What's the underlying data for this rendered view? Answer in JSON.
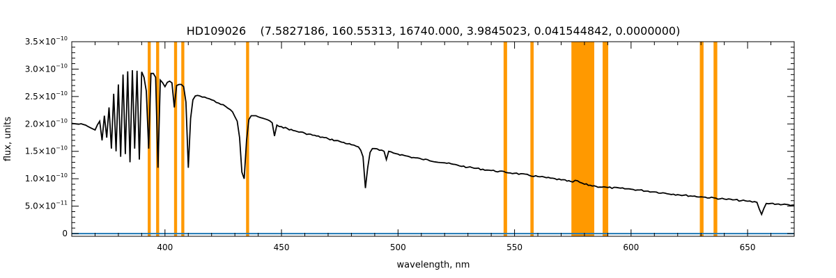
{
  "chart_data": {
    "type": "line",
    "title": "HD109026    (7.5827186, 160.55313, 16740.000, 3.9845023, 0.041544842, 0.0000000)",
    "xlabel": "wavelength, nm",
    "ylabel": "flux, units",
    "xlim": [
      360,
      670
    ],
    "ylim": [
      -5e-12,
      3.5e-10
    ],
    "grid": false,
    "x_ticks": [
      {
        "value": 400,
        "label": "400"
      },
      {
        "value": 450,
        "label": "450"
      },
      {
        "value": 500,
        "label": "500"
      },
      {
        "value": 550,
        "label": "550"
      },
      {
        "value": 600,
        "label": "600"
      },
      {
        "value": 650,
        "label": "650"
      }
    ],
    "y_ticks": [
      {
        "value": 0,
        "mant": "0",
        "exp": ""
      },
      {
        "value": 5e-11,
        "mant": "5.0×10",
        "exp": "−11"
      },
      {
        "value": 1e-10,
        "mant": "1.0×10",
        "exp": "−10"
      },
      {
        "value": 1.5e-10,
        "mant": "1.5×10",
        "exp": "−10"
      },
      {
        "value": 2e-10,
        "mant": "2.0×10",
        "exp": "−10"
      },
      {
        "value": 2.5e-10,
        "mant": "2.5×10",
        "exp": "−10"
      },
      {
        "value": 3e-10,
        "mant": "3.0×10",
        "exp": "−10"
      },
      {
        "value": 3.5e-10,
        "mant": "3.5×10",
        "exp": "−10"
      }
    ],
    "masked_bands": [
      {
        "x0": 392.6,
        "x1": 393.9
      },
      {
        "x0": 396.2,
        "x1": 397.5
      },
      {
        "x0": 403.9,
        "x1": 405.2
      },
      {
        "x0": 407.0,
        "x1": 408.3
      },
      {
        "x0": 434.8,
        "x1": 436.1
      },
      {
        "x0": 545.3,
        "x1": 546.8
      },
      {
        "x0": 556.8,
        "x1": 558.2
      },
      {
        "x0": 574.4,
        "x1": 584.2
      },
      {
        "x0": 587.8,
        "x1": 590.2
      },
      {
        "x0": 629.5,
        "x1": 631.1
      },
      {
        "x0": 635.4,
        "x1": 637.0
      }
    ],
    "series": [
      {
        "color": "#000000",
        "x": [
          360,
          362,
          365,
          368,
          370,
          372,
          373,
          374,
          375,
          376,
          377,
          378,
          379,
          380,
          381,
          382,
          383,
          384,
          385,
          386,
          387,
          388,
          389,
          390,
          391,
          392,
          393,
          394,
          395,
          396,
          397,
          398,
          399,
          400,
          401,
          402,
          403,
          404,
          405,
          406,
          407,
          408,
          409,
          410,
          411,
          412,
          413,
          414,
          415,
          417,
          420,
          423,
          426,
          429,
          431,
          432,
          433,
          434,
          435,
          436,
          437,
          438,
          440,
          443,
          446,
          447,
          448,
          450,
          455,
          460,
          465,
          470,
          475,
          480,
          483,
          484,
          485,
          486,
          487,
          488,
          489,
          490,
          492,
          494,
          495,
          496,
          500,
          505,
          510,
          520,
          530,
          540,
          550,
          560,
          570,
          575,
          576,
          580,
          585,
          590,
          600,
          610,
          620,
          630,
          640,
          650,
          654,
          655,
          656,
          657,
          658,
          660,
          665,
          670
        ],
        "y": [
          2.01e-10,
          2e-10,
          1.99e-10,
          1.93e-10,
          1.89e-10,
          2.05e-10,
          1.7e-10,
          2.15e-10,
          1.75e-10,
          2.3e-10,
          1.55e-10,
          2.55e-10,
          1.5e-10,
          2.72e-10,
          1.4e-10,
          2.9e-10,
          1.45e-10,
          2.96e-10,
          1.3e-10,
          2.98e-10,
          1.55e-10,
          2.97e-10,
          1.35e-10,
          2.95e-10,
          2.85e-10,
          2.6e-10,
          1.55e-10,
          2.92e-10,
          2.92e-10,
          2.85e-10,
          1.2e-10,
          2.8e-10,
          2.75e-10,
          2.68e-10,
          2.76e-10,
          2.78e-10,
          2.75e-10,
          2.3e-10,
          2.7e-10,
          2.72e-10,
          2.72e-10,
          2.68e-10,
          2.4e-10,
          1.2e-10,
          2.1e-10,
          2.44e-10,
          2.51e-10,
          2.52e-10,
          2.51e-10,
          2.49e-10,
          2.44e-10,
          2.38e-10,
          2.32e-10,
          2.22e-10,
          2.05e-10,
          1.75e-10,
          1.12e-10,
          1e-10,
          1.7e-10,
          2.08e-10,
          2.15e-10,
          2.15e-10,
          2.13e-10,
          2.09e-10,
          2.02e-10,
          1.78e-10,
          1.98e-10,
          1.95e-10,
          1.88e-10,
          1.83e-10,
          1.78e-10,
          1.73e-10,
          1.68e-10,
          1.62e-10,
          1.58e-10,
          1.52e-10,
          1.4e-10,
          8.3e-11,
          1.2e-10,
          1.48e-10,
          1.55e-10,
          1.55e-10,
          1.52e-10,
          1.5e-10,
          1.35e-10,
          1.5e-10,
          1.45e-10,
          1.4e-10,
          1.36e-10,
          1.29e-10,
          1.21e-10,
          1.15e-10,
          1.1e-10,
          1.04e-10,
          9.8e-11,
          9.4e-11,
          9.7e-11,
          9e-11,
          8.6e-11,
          8.4e-11,
          8.1e-11,
          7.6e-11,
          7.1e-11,
          6.7e-11,
          6.3e-11,
          5.9e-11,
          5.7e-11,
          4.5e-11,
          3.5e-11,
          4.6e-11,
          5.5e-11,
          5.5e-11,
          5.3e-11,
          5.2e-11
        ]
      },
      {
        "color": "#1f78b4",
        "x": [
          360,
          670
        ],
        "y": [
          0,
          0
        ]
      }
    ]
  }
}
